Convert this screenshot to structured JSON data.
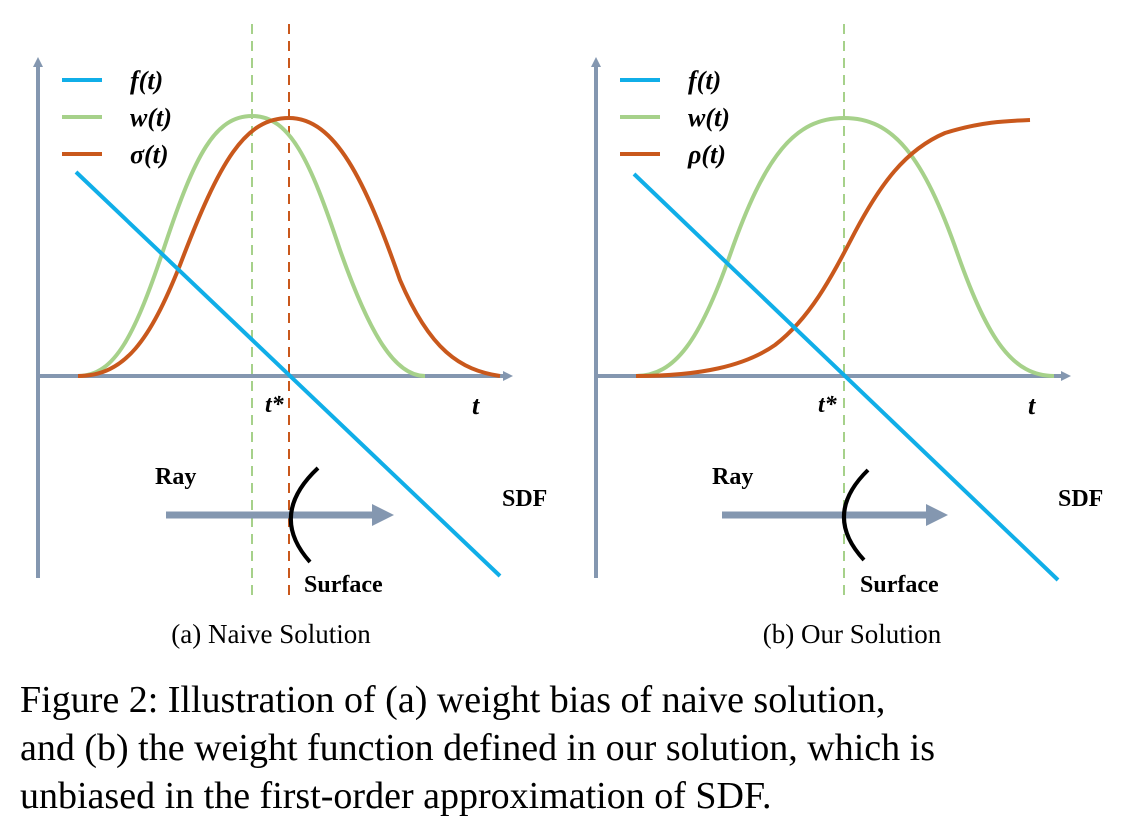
{
  "colors": {
    "axis": "#8497b0",
    "f": "#10aee8",
    "w": "#a6d18a",
    "sigma": "#c9581c",
    "rho": "#c9581c",
    "ray": "#8497b0",
    "surface": "#000000"
  },
  "panels": [
    {
      "id": "a",
      "legend": [
        "f(t)",
        "w(t)",
        "σ(t)"
      ],
      "t_star_label": "t*",
      "t_axis_label": "t",
      "ray_label": "Ray",
      "sdf_label": "SDF",
      "surface_label": "Surface",
      "subcaption": "(a) Naive Solution"
    },
    {
      "id": "b",
      "legend": [
        "f(t)",
        "w(t)",
        "ρ(t)"
      ],
      "t_star_label": "t*",
      "t_axis_label": "t",
      "ray_label": "Ray",
      "sdf_label": "SDF",
      "surface_label": "Surface",
      "subcaption": "(b) Our Solution"
    }
  ],
  "caption": {
    "line1": "Figure 2: Illustration of (a) weight bias of naive solution,",
    "line2": "and (b) the weight function defined in our solution, which is",
    "line3": "unbiased in the first-order approximation of SDF."
  }
}
